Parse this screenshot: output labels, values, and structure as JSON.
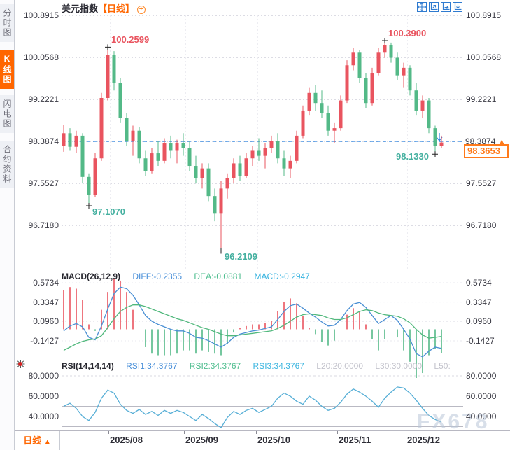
{
  "app": {
    "title": "美元指数",
    "period": "【日线】"
  },
  "sidebar": {
    "tabs": [
      {
        "key": "time-chart",
        "label": "分时图",
        "active": false
      },
      {
        "key": "kline-chart",
        "label": "K线图",
        "active": true
      },
      {
        "key": "lightning-chart",
        "label": "闪电图",
        "active": false
      },
      {
        "key": "contract-info",
        "label": "合约资料",
        "active": false
      }
    ]
  },
  "toolbar_icons": [
    "crosshair-icon",
    "fit-chart-icon",
    "zoom-horizontal-icon",
    "zoom-vertical-icon"
  ],
  "price_axis": {
    "labels": [
      "100.8915",
      "100.0568",
      "99.2221",
      "98.3874",
      "97.5527",
      "96.7180"
    ]
  },
  "price_marker": {
    "axis_value": "98.3874",
    "arrow": "▲",
    "last_price": "98.3653"
  },
  "annotations": [
    {
      "text": "100.2599",
      "idx": 7,
      "kind": "high"
    },
    {
      "text": "100.3900",
      "idx": 51,
      "kind": "high"
    },
    {
      "text": "97.1070",
      "idx": 4,
      "kind": "low"
    },
    {
      "text": "96.2109",
      "idx": 25,
      "kind": "low"
    },
    {
      "text": "98.1330",
      "idx": 59,
      "kind": "low",
      "side": "left"
    }
  ],
  "macd": {
    "title": "MACD(26,12,9)",
    "diff": "DIFF:-0.2355",
    "dea": "DEA:-0.0881",
    "macd": "MACD:-0.2947",
    "axis_labels": [
      "0.5734",
      "0.3347",
      "0.0960",
      "-0.1427"
    ]
  },
  "rsi": {
    "title": "RSI(14,14,14)",
    "rsi1": "RSI1:34.3767",
    "rsi2": "RSI2:34.3767",
    "rsi3": "RSI3:34.3767",
    "l20": "L20:20.0000",
    "l30": "L30:30.0000",
    "l50": "L50:",
    "axis_labels": [
      "80.0000",
      "60.0000",
      "40.0000"
    ]
  },
  "bottom_bar": {
    "period": "日线",
    "arrow": "▲"
  },
  "watermark": "FX678",
  "colors": {
    "up": "#e9545f",
    "down": "#53b987",
    "price_line": "#2b83e0",
    "accent": "#ff6600",
    "diff_line": "#4a8fd4",
    "dea_line": "#50b87c",
    "rsi_line": "#56aed6",
    "anno_high": "#e9545f",
    "anno_low": "#45b0a0",
    "grid": "#dcdce4"
  },
  "chart_data": [
    {
      "type": "candlestick",
      "title": "美元指数 日线",
      "x_axis": [
        "2025/08",
        "2025/09",
        "2025/10",
        "2025/11",
        "2025/12"
      ],
      "y_ticks": [
        100.8915,
        100.0568,
        99.2221,
        98.3874,
        97.5527,
        96.718
      ],
      "ylim": [
        95.84,
        100.8915
      ],
      "prev_close_line": 98.3874,
      "last_price": 98.3653,
      "key_points": {
        "high1": 100.2599,
        "high2": 100.39,
        "low1": 97.107,
        "low2": 96.2109,
        "recent_low": 98.133
      },
      "ohlc": [
        [
          98.3,
          98.72,
          98.18,
          98.55
        ],
        [
          98.55,
          98.65,
          98.2,
          98.28
        ],
        [
          98.28,
          98.6,
          98.15,
          98.5
        ],
        [
          98.5,
          98.55,
          97.55,
          97.68
        ],
        [
          97.68,
          97.75,
          97.107,
          97.32
        ],
        [
          97.32,
          98.15,
          97.28,
          98.05
        ],
        [
          98.05,
          99.35,
          98.0,
          99.25
        ],
        [
          99.25,
          100.2599,
          99.2,
          100.1
        ],
        [
          100.1,
          100.18,
          99.4,
          99.55
        ],
        [
          99.55,
          99.65,
          98.75,
          98.85
        ],
        [
          98.85,
          98.95,
          98.3,
          98.4
        ],
        [
          98.4,
          98.7,
          98.1,
          98.6
        ],
        [
          98.6,
          98.68,
          97.95,
          98.05
        ],
        [
          98.05,
          98.2,
          97.7,
          97.8
        ],
        [
          97.8,
          98.25,
          97.75,
          98.15
        ],
        [
          98.15,
          98.4,
          97.9,
          98.0
        ],
        [
          98.0,
          98.45,
          97.95,
          98.35
        ],
        [
          98.35,
          98.5,
          98.05,
          98.2
        ],
        [
          98.2,
          98.42,
          97.95,
          98.35
        ],
        [
          98.35,
          98.55,
          98.1,
          98.25
        ],
        [
          98.25,
          98.4,
          97.8,
          97.9
        ],
        [
          97.9,
          98.1,
          97.55,
          97.65
        ],
        [
          97.65,
          97.95,
          97.45,
          97.85
        ],
        [
          97.85,
          97.95,
          97.2,
          97.3
        ],
        [
          97.3,
          97.45,
          96.8,
          96.95
        ],
        [
          96.95,
          97.6,
          96.2109,
          97.45
        ],
        [
          97.45,
          97.75,
          97.25,
          97.65
        ],
        [
          97.65,
          98.05,
          97.55,
          97.95
        ],
        [
          97.95,
          98.1,
          97.6,
          97.7
        ],
        [
          97.7,
          98.15,
          97.65,
          98.05
        ],
        [
          98.05,
          98.3,
          97.9,
          98.2
        ],
        [
          98.2,
          98.45,
          98.0,
          98.1
        ],
        [
          98.1,
          98.35,
          97.85,
          98.25
        ],
        [
          98.25,
          98.5,
          98.15,
          98.4
        ],
        [
          98.4,
          98.55,
          97.95,
          98.05
        ],
        [
          98.05,
          98.2,
          97.7,
          97.85
        ],
        [
          97.85,
          98.1,
          97.65,
          98.0
        ],
        [
          98.0,
          98.6,
          97.95,
          98.5
        ],
        [
          98.5,
          99.1,
          98.45,
          99.0
        ],
        [
          99.0,
          99.45,
          98.9,
          99.35
        ],
        [
          99.35,
          99.5,
          99.0,
          99.15
        ],
        [
          99.15,
          99.4,
          98.85,
          98.95
        ],
        [
          98.95,
          99.1,
          98.5,
          98.6
        ],
        [
          98.6,
          98.75,
          98.35,
          98.65
        ],
        [
          98.65,
          99.3,
          98.6,
          99.2
        ],
        [
          99.2,
          100.0,
          99.15,
          99.9
        ],
        [
          99.9,
          100.25,
          99.8,
          100.15
        ],
        [
          100.15,
          100.2,
          99.55,
          99.65
        ],
        [
          99.65,
          99.75,
          99.05,
          99.15
        ],
        [
          99.15,
          99.85,
          99.1,
          99.75
        ],
        [
          99.75,
          100.25,
          99.7,
          100.15
        ],
        [
          100.15,
          100.39,
          100.05,
          100.3
        ],
        [
          100.3,
          100.35,
          99.95,
          100.05
        ],
        [
          100.05,
          100.15,
          99.6,
          99.7
        ],
        [
          99.7,
          99.95,
          99.45,
          99.85
        ],
        [
          99.85,
          99.9,
          99.3,
          99.4
        ],
        [
          99.4,
          99.55,
          98.9,
          99.0
        ],
        [
          99.0,
          99.3,
          98.85,
          99.2
        ],
        [
          99.2,
          99.25,
          98.55,
          98.65
        ],
        [
          98.65,
          98.7,
          98.133,
          98.3
        ],
        [
          98.3,
          98.5,
          98.25,
          98.3653
        ]
      ]
    },
    {
      "type": "bar",
      "name": "MACD(26,12,9)",
      "y_ticks": [
        0.5734,
        0.3347,
        0.096,
        -0.1427
      ],
      "hist_rule": "2*(diff-dea)",
      "current": {
        "diff": -0.2355,
        "dea": -0.0881,
        "macd": -0.2947
      },
      "diff": [
        -0.02,
        0.04,
        0.07,
        0.03,
        -0.1,
        -0.13,
        0.04,
        0.25,
        0.44,
        0.52,
        0.5,
        0.42,
        0.3,
        0.17,
        0.1,
        0.06,
        0.03,
        0.0,
        -0.02,
        -0.02,
        -0.05,
        -0.1,
        -0.11,
        -0.14,
        -0.18,
        -0.22,
        -0.17,
        -0.1,
        -0.06,
        -0.04,
        -0.02,
        -0.01,
        0.01,
        0.03,
        0.12,
        0.22,
        0.29,
        0.31,
        0.26,
        0.2,
        0.15,
        0.09,
        0.04,
        0.05,
        0.12,
        0.23,
        0.31,
        0.33,
        0.27,
        0.17,
        0.07,
        0.12,
        0.17,
        0.11,
        0.0,
        -0.12,
        -0.3,
        -0.34,
        -0.27,
        -0.22,
        -0.2355
      ],
      "dea": [
        -0.26,
        -0.22,
        -0.18,
        -0.15,
        -0.13,
        -0.12,
        -0.08,
        0.02,
        0.13,
        0.22,
        0.27,
        0.3,
        0.3,
        0.28,
        0.25,
        0.22,
        0.19,
        0.16,
        0.13,
        0.11,
        0.08,
        0.05,
        0.02,
        0.0,
        -0.03,
        -0.06,
        -0.08,
        -0.08,
        -0.07,
        -0.06,
        -0.05,
        -0.04,
        -0.03,
        -0.02,
        0.01,
        0.05,
        0.1,
        0.15,
        0.18,
        0.19,
        0.18,
        0.17,
        0.14,
        0.12,
        0.12,
        0.14,
        0.18,
        0.22,
        0.24,
        0.23,
        0.2,
        0.18,
        0.17,
        0.16,
        0.13,
        0.08,
        0.0,
        -0.07,
        -0.11,
        -0.1,
        -0.0881
      ]
    },
    {
      "type": "line",
      "name": "RSI(14,14,14)",
      "y_ticks": [
        80,
        60,
        40
      ],
      "guides": [
        70,
        50,
        30
      ],
      "current": {
        "rsi1": 34.3767,
        "rsi2": 34.3767,
        "rsi3": 34.3767
      },
      "values": [
        50,
        53,
        48,
        40,
        36,
        44,
        58,
        66,
        63,
        52,
        46,
        43,
        47,
        42,
        45,
        41,
        46,
        43,
        46,
        44,
        40,
        36,
        42,
        38,
        33,
        29,
        39,
        45,
        42,
        46,
        48,
        44,
        47,
        50,
        58,
        63,
        60,
        55,
        52,
        60,
        56,
        50,
        46,
        48,
        54,
        62,
        67,
        64,
        60,
        55,
        49,
        58,
        64,
        69,
        68,
        63,
        56,
        48,
        41,
        37,
        34.3767
      ]
    }
  ]
}
